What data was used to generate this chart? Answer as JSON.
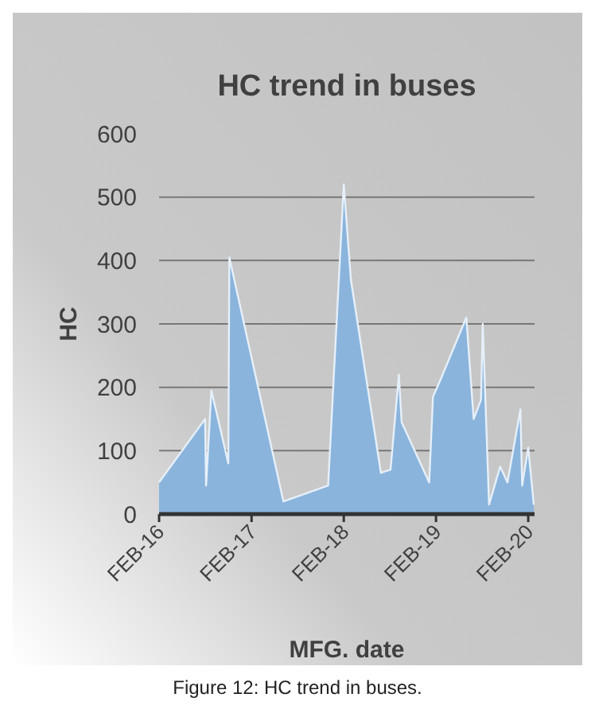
{
  "chart_data": {
    "type": "area",
    "title": "HC trend in buses",
    "xlabel": "MFG. date",
    "ylabel": "HC",
    "annotations": [
      "Figure 12: HC trend in buses."
    ],
    "x": [
      "2016-02-01",
      "2016-08-01",
      "2016-08-05",
      "2016-08-26",
      "2016-11-01",
      "2016-11-05",
      "2017-06-07",
      "2017-12-01",
      "2018-02-01",
      "2018-03-01",
      "2018-06-28",
      "2018-08-05",
      "2018-09-07",
      "2018-09-18",
      "2019-01-05",
      "2019-01-20",
      "2019-02-22",
      "2019-06-01",
      "2019-06-30",
      "2019-07-29",
      "2019-08-05",
      "2019-08-30",
      "2019-10-13",
      "2019-11-11",
      "2020-01-01",
      "2020-01-08",
      "2020-02-01",
      "2020-02-23"
    ],
    "series": [
      {
        "color": "#8ab4dc",
        "values": [
          50,
          150,
          45,
          195,
          80,
          405,
          20,
          45,
          520,
          370,
          65,
          70,
          220,
          145,
          50,
          185,
          215,
          310,
          150,
          180,
          300,
          15,
          75,
          50,
          165,
          45,
          105,
          15
        ]
      }
    ],
    "xlim": [
      "2016-02-01",
      "2020-02-26"
    ],
    "xticks": [
      {
        "value": "2016-02-01",
        "label": "FEB-16"
      },
      {
        "value": "2017-02-01",
        "label": "FEB-17"
      },
      {
        "value": "2018-02-01",
        "label": "FEB-18"
      },
      {
        "value": "2019-02-01",
        "label": "FEB-19"
      },
      {
        "value": "2020-02-01",
        "label": "FEB-20"
      }
    ],
    "ylim": [
      0,
      600
    ],
    "yticks": [
      0,
      100,
      200,
      300,
      400,
      500,
      600
    ],
    "grid": "y"
  }
}
